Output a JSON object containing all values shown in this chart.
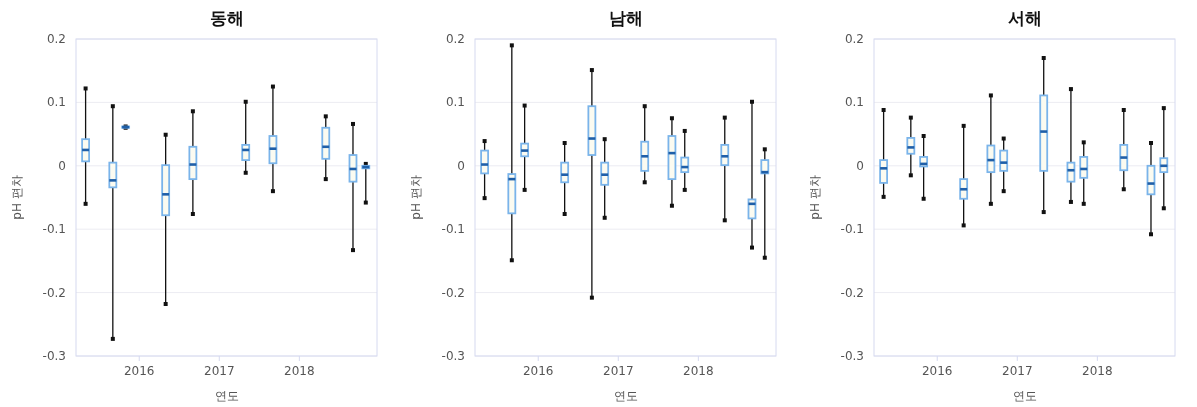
{
  "chart_data": [
    {
      "type": "box",
      "title": "동해",
      "xlabel": "연도",
      "ylabel": "pH 편차",
      "color": "#7ab4ea",
      "grid": "y",
      "xlim": [
        2015.21,
        2018.97
      ],
      "xticks": [
        2016,
        2017,
        2018
      ],
      "ylim": [
        -0.3,
        0.2
      ],
      "yticks": [
        -0.3,
        -0.2,
        -0.1,
        0,
        0.1,
        0.2
      ],
      "x": [
        2015.33,
        2015.67,
        2015.83,
        2016.33,
        2016.67,
        2017.33,
        2017.67,
        2018.33,
        2018.67,
        2018.83
      ],
      "boxes": [
        {
          "low": -0.06,
          "q1": 0.007,
          "median": 0.025,
          "q3": 0.042,
          "high": 0.122
        },
        {
          "low": -0.273,
          "q1": -0.034,
          "median": -0.023,
          "q3": 0.005,
          "high": 0.094
        },
        {
          "low": 0.06,
          "q1": 0.06,
          "median": 0.061,
          "q3": 0.062,
          "high": 0.062
        },
        {
          "low": -0.218,
          "q1": -0.078,
          "median": -0.045,
          "q3": 0.001,
          "high": 0.049
        },
        {
          "low": -0.076,
          "q1": -0.021,
          "median": 0.002,
          "q3": 0.03,
          "high": 0.086
        },
        {
          "low": -0.011,
          "q1": 0.009,
          "median": 0.025,
          "q3": 0.033,
          "high": 0.101
        },
        {
          "low": -0.04,
          "q1": 0.004,
          "median": 0.027,
          "q3": 0.047,
          "high": 0.125
        },
        {
          "low": -0.021,
          "q1": 0.011,
          "median": 0.03,
          "q3": 0.06,
          "high": 0.078
        },
        {
          "low": -0.133,
          "q1": -0.025,
          "median": -0.005,
          "q3": 0.017,
          "high": 0.066
        },
        {
          "low": -0.058,
          "q1": -0.004,
          "median": -0.002,
          "q3": 0.0,
          "high": 0.003
        }
      ]
    },
    {
      "type": "box",
      "title": "남해",
      "xlabel": "연도",
      "ylabel": "pH 편차",
      "color": "#7ab4ea",
      "grid": "y",
      "xlim": [
        2015.21,
        2018.97
      ],
      "xticks": [
        2016,
        2017,
        2018
      ],
      "ylim": [
        -0.3,
        0.2
      ],
      "yticks": [
        -0.3,
        -0.2,
        -0.1,
        0,
        0.1,
        0.2
      ],
      "x": [
        2015.33,
        2015.67,
        2015.83,
        2016.33,
        2016.67,
        2016.83,
        2017.33,
        2017.67,
        2017.83,
        2018.33,
        2018.67,
        2018.83
      ],
      "boxes": [
        {
          "low": -0.051,
          "q1": -0.012,
          "median": 0.002,
          "q3": 0.024,
          "high": 0.039
        },
        {
          "low": -0.149,
          "q1": -0.075,
          "median": -0.021,
          "q3": -0.013,
          "high": 0.19
        },
        {
          "low": -0.038,
          "q1": 0.015,
          "median": 0.024,
          "q3": 0.035,
          "high": 0.095
        },
        {
          "low": -0.076,
          "q1": -0.026,
          "median": -0.014,
          "q3": 0.005,
          "high": 0.036
        },
        {
          "low": -0.208,
          "q1": 0.017,
          "median": 0.043,
          "q3": 0.094,
          "high": 0.151
        },
        {
          "low": -0.082,
          "q1": -0.03,
          "median": -0.014,
          "q3": 0.005,
          "high": 0.042
        },
        {
          "low": -0.026,
          "q1": -0.008,
          "median": 0.015,
          "q3": 0.038,
          "high": 0.094
        },
        {
          "low": -0.063,
          "q1": -0.021,
          "median": 0.02,
          "q3": 0.047,
          "high": 0.075
        },
        {
          "low": -0.038,
          "q1": -0.01,
          "median": -0.002,
          "q3": 0.013,
          "high": 0.055
        },
        {
          "low": -0.086,
          "q1": 0.001,
          "median": 0.015,
          "q3": 0.033,
          "high": 0.076
        },
        {
          "low": -0.129,
          "q1": -0.083,
          "median": -0.06,
          "q3": -0.053,
          "high": 0.101
        },
        {
          "low": -0.145,
          "q1": -0.012,
          "median": -0.01,
          "q3": 0.009,
          "high": 0.026
        }
      ]
    },
    {
      "type": "box",
      "title": "서해",
      "xlabel": "연도",
      "ylabel": "pH 편차",
      "color": "#7ab4ea",
      "grid": "y",
      "xlim": [
        2015.21,
        2018.97
      ],
      "xticks": [
        2016,
        2017,
        2018
      ],
      "ylim": [
        -0.3,
        0.2
      ],
      "yticks": [
        -0.3,
        -0.2,
        -0.1,
        0,
        0.1,
        0.2
      ],
      "x": [
        2015.33,
        2015.67,
        2015.83,
        2016.33,
        2016.67,
        2016.83,
        2017.33,
        2017.67,
        2017.83,
        2018.33,
        2018.67,
        2018.83
      ],
      "boxes": [
        {
          "low": -0.049,
          "q1": -0.027,
          "median": -0.004,
          "q3": 0.009,
          "high": 0.088
        },
        {
          "low": -0.015,
          "q1": 0.019,
          "median": 0.029,
          "q3": 0.044,
          "high": 0.076
        },
        {
          "low": -0.052,
          "q1": -0.001,
          "median": 0.003,
          "q3": 0.014,
          "high": 0.047
        },
        {
          "low": -0.094,
          "q1": -0.052,
          "median": -0.037,
          "q3": -0.021,
          "high": 0.063
        },
        {
          "low": -0.06,
          "q1": -0.01,
          "median": 0.009,
          "q3": 0.032,
          "high": 0.111
        },
        {
          "low": -0.04,
          "q1": -0.008,
          "median": 0.005,
          "q3": 0.024,
          "high": 0.043
        },
        {
          "low": -0.073,
          "q1": -0.008,
          "median": 0.054,
          "q3": 0.111,
          "high": 0.17
        },
        {
          "low": -0.057,
          "q1": -0.025,
          "median": -0.007,
          "q3": 0.005,
          "high": 0.121
        },
        {
          "low": -0.06,
          "q1": -0.019,
          "median": -0.005,
          "q3": 0.014,
          "high": 0.037
        },
        {
          "low": -0.037,
          "q1": -0.007,
          "median": 0.013,
          "q3": 0.033,
          "high": 0.088
        },
        {
          "low": -0.108,
          "q1": -0.045,
          "median": -0.028,
          "q3": 0.0,
          "high": 0.036
        },
        {
          "low": -0.067,
          "q1": -0.01,
          "median": 0.0,
          "q3": 0.012,
          "high": 0.091
        }
      ]
    }
  ]
}
